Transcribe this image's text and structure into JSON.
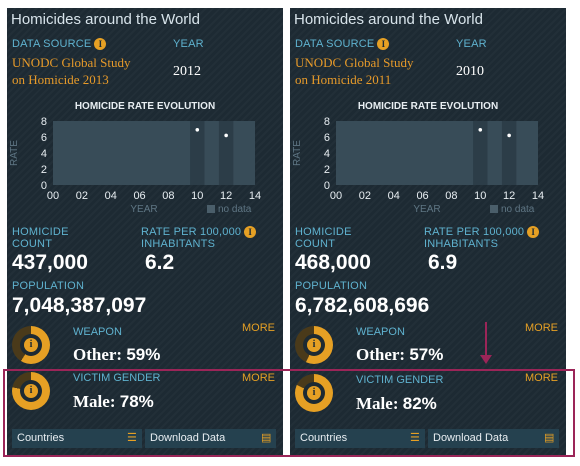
{
  "panels": [
    {
      "title": "Homicides around the World",
      "data_source_label": "DATA SOURCE",
      "data_source_line1": "UNODC Global Study",
      "data_source_line2": "on Homicide 2013",
      "year_label": "YEAR",
      "year": "2012",
      "chart_title": "HOMICIDE RATE EVOLUTION",
      "count_label_1": "HOMICIDE",
      "count_label_2": "COUNT",
      "count": "437,000",
      "rate_label_1": "RATE PER 100,000",
      "rate_label_2": "INHABITANTS",
      "rate": "6.2",
      "population_label": "POPULATION",
      "population": "7,048,387,097",
      "weapon_label": "WEAPON",
      "weapon_value": "Other:",
      "weapon_pct": "59%",
      "weapon_fraction": 0.59,
      "gender_label": "VICTIM GENDER",
      "gender_value": "Male:",
      "gender_pct": "78%",
      "gender_fraction": 0.78,
      "more": "MORE",
      "countries_button": "Countries",
      "download_button": "Download Data"
    },
    {
      "title": "Homicides around the World",
      "data_source_label": "DATA SOURCE",
      "data_source_line1": "UNODC Global Study",
      "data_source_line2": "on Homicide 2011",
      "year_label": "YEAR",
      "year": "2010",
      "chart_title": "HOMICIDE RATE EVOLUTION",
      "count_label_1": "HOMICIDE",
      "count_label_2": "COUNT",
      "count": "468,000",
      "rate_label_1": "RATE PER 100,000",
      "rate_label_2": "INHABITANTS",
      "rate": "6.9",
      "population_label": "POPULATION",
      "population": "6,782,608,696",
      "weapon_label": "WEAPON",
      "weapon_value": "Other:",
      "weapon_pct": "57%",
      "weapon_fraction": 0.57,
      "gender_label": "VICTIM GENDER",
      "gender_value": "Male:",
      "gender_pct": "82%",
      "gender_fraction": 0.82,
      "more": "MORE",
      "countries_button": "Countries",
      "download_button": "Download Data"
    }
  ],
  "info_icon": "info-icon",
  "colors": {
    "panel_bg": "#1d2a33",
    "accent": "#e6a024",
    "label": "#5fb2cf",
    "highlight": "#9b2558",
    "donut_track": "#4a3a1a"
  },
  "chart_data": [
    {
      "type": "scatter",
      "title": "HOMICIDE RATE EVOLUTION",
      "xlabel": "YEAR",
      "ylabel": "RATE",
      "x_ticks": [
        "00",
        "02",
        "04",
        "06",
        "08",
        "10",
        "12",
        "14"
      ],
      "y_ticks": [
        "0",
        "2",
        "4",
        "6",
        "8"
      ],
      "x": [
        10,
        12
      ],
      "y": [
        6.9,
        6.2
      ],
      "xlim": [
        0,
        14
      ],
      "ylim": [
        0,
        8
      ],
      "legend": "no data",
      "no_data_ranges": [
        [
          0,
          9
        ],
        [
          11,
          11
        ],
        [
          13,
          14
        ]
      ]
    },
    {
      "type": "scatter",
      "title": "HOMICIDE RATE EVOLUTION",
      "xlabel": "YEAR",
      "ylabel": "RATE",
      "x_ticks": [
        "00",
        "02",
        "04",
        "06",
        "08",
        "10",
        "12",
        "14"
      ],
      "y_ticks": [
        "0",
        "2",
        "4",
        "6",
        "8"
      ],
      "x": [
        10,
        12
      ],
      "y": [
        6.9,
        6.2
      ],
      "xlim": [
        0,
        14
      ],
      "ylim": [
        0,
        8
      ],
      "legend": "no data",
      "no_data_ranges": [
        [
          0,
          9
        ],
        [
          11,
          11
        ],
        [
          13,
          14
        ]
      ]
    }
  ]
}
